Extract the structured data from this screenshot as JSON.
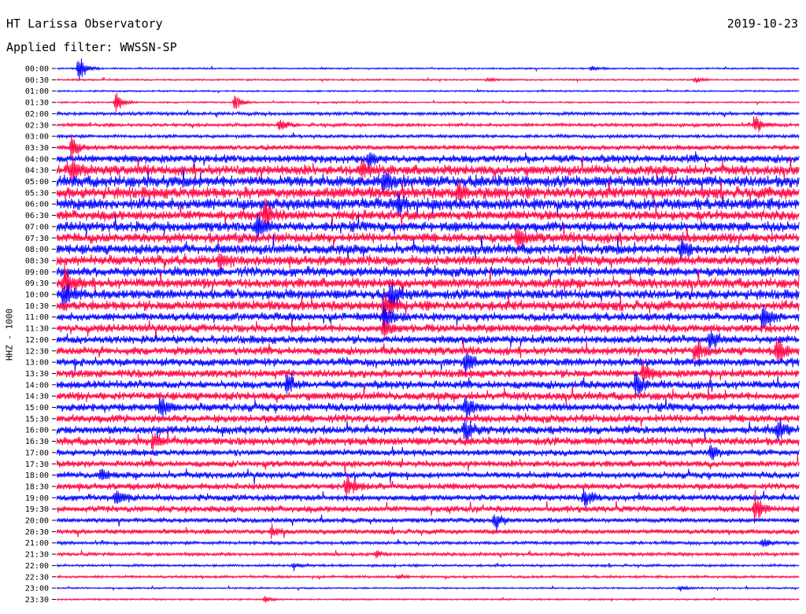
{
  "header": {
    "station": "HT Larissa Observatory",
    "date": "2019-10-23",
    "filter": "Applied filter: WWSSN-SP"
  },
  "chart_data": {
    "type": "line",
    "title": "HT Larissa Observatory",
    "date": "2019-10-23",
    "filter": "WWSSN-SP",
    "ylabel": "HHZ - 1000",
    "xlabel": "",
    "trace_colors": [
      "#0000ff",
      "#ff0040"
    ],
    "tick_labels": [
      "00:00",
      "00:30",
      "01:00",
      "01:30",
      "02:00",
      "02:30",
      "03:00",
      "03:30",
      "04:00",
      "04:30",
      "05:00",
      "05:30",
      "06:00",
      "06:30",
      "07:00",
      "07:30",
      "08:00",
      "08:30",
      "09:00",
      "09:30",
      "10:00",
      "10:30",
      "11:00",
      "11:30",
      "12:00",
      "12:30",
      "13:00",
      "13:30",
      "14:00",
      "14:30",
      "15:00",
      "15:30",
      "16:00",
      "16:30",
      "17:00",
      "17:30",
      "18:00",
      "18:30",
      "19:00",
      "19:30",
      "20:00",
      "20:30",
      "21:00",
      "21:30",
      "22:00",
      "22:30",
      "23:00",
      "23:30"
    ],
    "noise_amplitude": [
      1,
      1,
      1,
      1,
      2,
      2,
      2,
      3,
      5,
      6,
      7,
      7,
      7,
      6,
      6,
      6,
      6,
      6,
      6,
      6,
      6,
      6,
      5,
      5,
      5,
      5,
      5,
      5,
      5,
      5,
      5,
      5,
      5,
      5,
      4,
      4,
      4,
      4,
      4,
      4,
      3,
      3,
      2,
      2,
      1.5,
      1.5,
      1,
      1
    ],
    "events": [
      {
        "row": 0,
        "pos": 0.03,
        "amp": 18
      },
      {
        "row": 0,
        "pos": 0.72,
        "amp": 4
      },
      {
        "row": 1,
        "pos": 0.58,
        "amp": 3
      },
      {
        "row": 1,
        "pos": 0.86,
        "amp": 4
      },
      {
        "row": 3,
        "pos": 0.08,
        "amp": 14
      },
      {
        "row": 3,
        "pos": 0.24,
        "amp": 12
      },
      {
        "row": 5,
        "pos": 0.3,
        "amp": 10
      },
      {
        "row": 5,
        "pos": 0.94,
        "amp": 14
      },
      {
        "row": 7,
        "pos": 0.02,
        "amp": 16
      },
      {
        "row": 8,
        "pos": 0.42,
        "amp": 12
      },
      {
        "row": 9,
        "pos": 0.02,
        "amp": 18
      },
      {
        "row": 9,
        "pos": 0.41,
        "amp": 14
      },
      {
        "row": 10,
        "pos": 0.44,
        "amp": 16
      },
      {
        "row": 11,
        "pos": 0.54,
        "amp": 14
      },
      {
        "row": 12,
        "pos": 0.46,
        "amp": 14
      },
      {
        "row": 13,
        "pos": 0.28,
        "amp": 20
      },
      {
        "row": 14,
        "pos": 0.27,
        "amp": 18
      },
      {
        "row": 15,
        "pos": 0.62,
        "amp": 16
      },
      {
        "row": 16,
        "pos": 0.84,
        "amp": 14
      },
      {
        "row": 17,
        "pos": 0.22,
        "amp": 12
      },
      {
        "row": 19,
        "pos": 0.01,
        "amp": 20
      },
      {
        "row": 20,
        "pos": 0.01,
        "amp": 18
      },
      {
        "row": 20,
        "pos": 0.45,
        "amp": 22
      },
      {
        "row": 21,
        "pos": 0.44,
        "amp": 20
      },
      {
        "row": 22,
        "pos": 0.44,
        "amp": 16
      },
      {
        "row": 22,
        "pos": 0.95,
        "amp": 18
      },
      {
        "row": 23,
        "pos": 0.44,
        "amp": 14
      },
      {
        "row": 24,
        "pos": 0.88,
        "amp": 14
      },
      {
        "row": 25,
        "pos": 0.86,
        "amp": 16
      },
      {
        "row": 25,
        "pos": 0.97,
        "amp": 18
      },
      {
        "row": 26,
        "pos": 0.55,
        "amp": 16
      },
      {
        "row": 27,
        "pos": 0.79,
        "amp": 14
      },
      {
        "row": 28,
        "pos": 0.31,
        "amp": 14
      },
      {
        "row": 28,
        "pos": 0.78,
        "amp": 14
      },
      {
        "row": 30,
        "pos": 0.14,
        "amp": 14
      },
      {
        "row": 30,
        "pos": 0.55,
        "amp": 16
      },
      {
        "row": 32,
        "pos": 0.55,
        "amp": 16
      },
      {
        "row": 32,
        "pos": 0.97,
        "amp": 14
      },
      {
        "row": 33,
        "pos": 0.13,
        "amp": 12
      },
      {
        "row": 34,
        "pos": 0.88,
        "amp": 12
      },
      {
        "row": 36,
        "pos": 0.06,
        "amp": 10
      },
      {
        "row": 37,
        "pos": 0.39,
        "amp": 16
      },
      {
        "row": 38,
        "pos": 0.08,
        "amp": 14
      },
      {
        "row": 38,
        "pos": 0.71,
        "amp": 12
      },
      {
        "row": 39,
        "pos": 0.94,
        "amp": 20
      },
      {
        "row": 40,
        "pos": 0.59,
        "amp": 14
      },
      {
        "row": 41,
        "pos": 0.29,
        "amp": 8
      },
      {
        "row": 42,
        "pos": 0.95,
        "amp": 8
      },
      {
        "row": 43,
        "pos": 0.43,
        "amp": 4
      },
      {
        "row": 44,
        "pos": 0.32,
        "amp": 4
      },
      {
        "row": 45,
        "pos": 0.46,
        "amp": 3
      },
      {
        "row": 46,
        "pos": 0.84,
        "amp": 4
      },
      {
        "row": 47,
        "pos": 0.28,
        "amp": 4
      }
    ],
    "grid": false,
    "legend": "none"
  }
}
